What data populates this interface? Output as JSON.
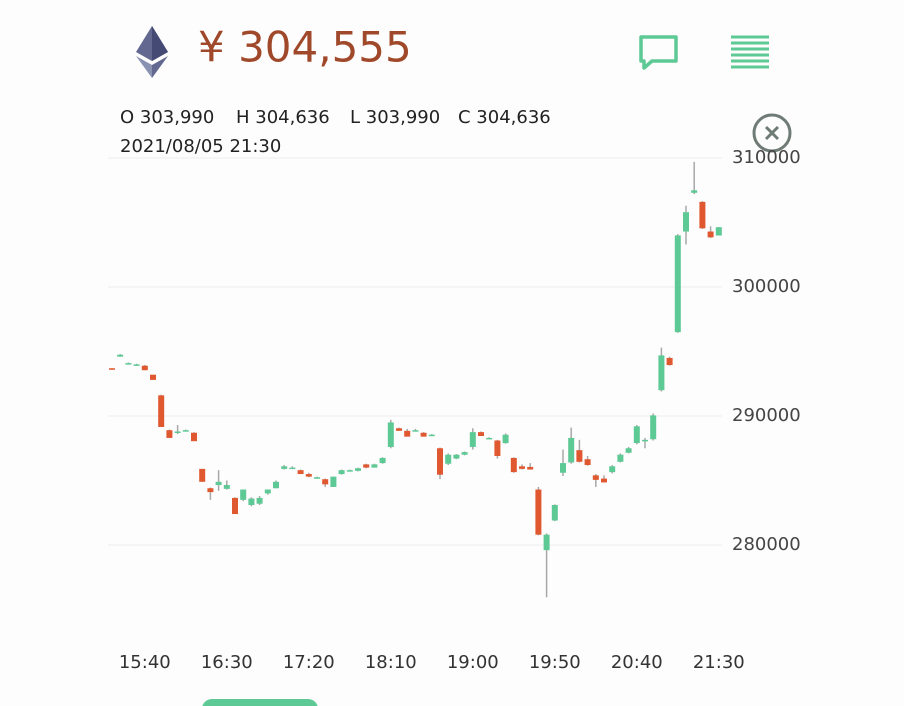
{
  "header": {
    "price": "¥ 304,555"
  },
  "info": {
    "open": "O 303,990",
    "high": "H 304,636",
    "low": "L 303,990",
    "close": "C 304,636",
    "time": "2021/08/05 21:30"
  },
  "chart_data": {
    "type": "candlestick",
    "categories": [
      "15:20",
      "15:25",
      "15:30",
      "15:35",
      "15:40",
      "15:45",
      "15:50",
      "15:55",
      "16:00",
      "16:05",
      "16:10",
      "16:15",
      "16:20",
      "16:25",
      "16:30",
      "16:35",
      "16:40",
      "16:45",
      "16:50",
      "16:55",
      "17:00",
      "17:05",
      "17:10",
      "17:15",
      "17:20",
      "17:25",
      "17:30",
      "17:35",
      "17:40",
      "17:45",
      "17:50",
      "17:55",
      "18:00",
      "18:05",
      "18:10",
      "18:15",
      "18:20",
      "18:25",
      "18:30",
      "18:35",
      "18:40",
      "18:45",
      "18:50",
      "18:55",
      "19:00",
      "19:05",
      "19:10",
      "19:15",
      "19:20",
      "19:25",
      "19:30",
      "19:35",
      "19:40",
      "19:45",
      "19:50",
      "19:55",
      "20:00",
      "20:05",
      "20:10",
      "20:15",
      "20:20",
      "20:25",
      "20:30",
      "20:35",
      "20:40",
      "20:45",
      "20:50",
      "20:55",
      "21:00",
      "21:05",
      "21:10",
      "21:15",
      "21:20",
      "21:25",
      "21:30"
    ],
    "open": [
      293700,
      294600,
      294100,
      294000,
      293900,
      293200,
      291600,
      288900,
      288700,
      288900,
      288700,
      285900,
      284400,
      284650,
      284350,
      283650,
      283500,
      283100,
      283200,
      284000,
      284400,
      285900,
      286000,
      285800,
      285500,
      285250,
      285100,
      284500,
      285500,
      285800,
      285750,
      286250,
      286000,
      286350,
      287600,
      289050,
      288850,
      288900,
      288700,
      288500,
      287500,
      286300,
      286700,
      287000,
      287600,
      288750,
      288300,
      288100,
      287900,
      286750,
      286100,
      286050,
      284300,
      279600,
      281900,
      285600,
      286400,
      287350,
      286650,
      285400,
      285150,
      285650,
      286450,
      287150,
      287900,
      288150,
      288200,
      292000,
      294500,
      296500,
      304300,
      307300,
      306600,
      304300,
      303990
    ],
    "high": [
      293700,
      294800,
      294150,
      294050,
      293950,
      293200,
      291650,
      288950,
      289300,
      288950,
      288750,
      285900,
      284450,
      285800,
      285000,
      283700,
      284300,
      283700,
      283800,
      284300,
      285000,
      286200,
      286100,
      285850,
      285600,
      285300,
      285150,
      285300,
      285850,
      285850,
      286000,
      286300,
      286300,
      286800,
      289700,
      289100,
      289000,
      289000,
      288750,
      288600,
      287550,
      287100,
      287050,
      287250,
      289050,
      288800,
      288350,
      288150,
      288650,
      286800,
      286250,
      286350,
      284500,
      280900,
      283150,
      287400,
      289100,
      288150,
      286900,
      285500,
      285400,
      286200,
      287100,
      287600,
      289300,
      288300,
      290200,
      295300,
      294600,
      304100,
      306300,
      309700,
      306650,
      304700,
      304636
    ],
    "low": [
      293600,
      294600,
      294050,
      293950,
      293550,
      292800,
      289150,
      288300,
      288600,
      288850,
      288050,
      284900,
      283500,
      284200,
      284300,
      282400,
      283400,
      283000,
      283100,
      283900,
      284400,
      285850,
      285950,
      285500,
      285250,
      285200,
      284500,
      284500,
      285450,
      285750,
      285700,
      285950,
      286000,
      286300,
      287500,
      288850,
      288400,
      288850,
      288400,
      288450,
      285100,
      286200,
      286650,
      286950,
      287400,
      288450,
      288250,
      286700,
      287850,
      285600,
      285850,
      285850,
      280750,
      275950,
      281850,
      285350,
      286300,
      286400,
      286150,
      284500,
      284850,
      285550,
      286400,
      287100,
      287800,
      287500,
      288100,
      291900,
      293900,
      296450,
      303300,
      307200,
      304500,
      303800,
      303990
    ],
    "close": [
      293600,
      294750,
      294100,
      294000,
      293550,
      292800,
      289150,
      288300,
      288800,
      288900,
      288050,
      284900,
      284100,
      284900,
      284650,
      282400,
      284300,
      283600,
      283650,
      284300,
      284900,
      286100,
      286000,
      285500,
      285300,
      285250,
      284700,
      285300,
      285800,
      285800,
      285950,
      286000,
      286250,
      286750,
      289500,
      288850,
      288400,
      288900,
      288400,
      288550,
      285450,
      287000,
      287000,
      287200,
      288750,
      288450,
      288300,
      286900,
      288550,
      285650,
      285900,
      285850,
      280800,
      280800,
      283100,
      286350,
      288300,
      286450,
      286200,
      285050,
      284850,
      286100,
      287000,
      287500,
      289200,
      288150,
      290050,
      294700,
      293950,
      304000,
      305800,
      307500,
      304550,
      303850,
      304636
    ],
    "up_color": "#5dc995",
    "down_color": "#e0582f",
    "wick_color": "#a8a8a8",
    "ylim": [
      274000,
      311000
    ],
    "yticks": [
      280000,
      290000,
      300000,
      310000
    ],
    "xticks": [
      "15:40",
      "16:30",
      "17:20",
      "18:10",
      "19:00",
      "19:50",
      "20:40",
      "21:30"
    ],
    "grid": true
  }
}
